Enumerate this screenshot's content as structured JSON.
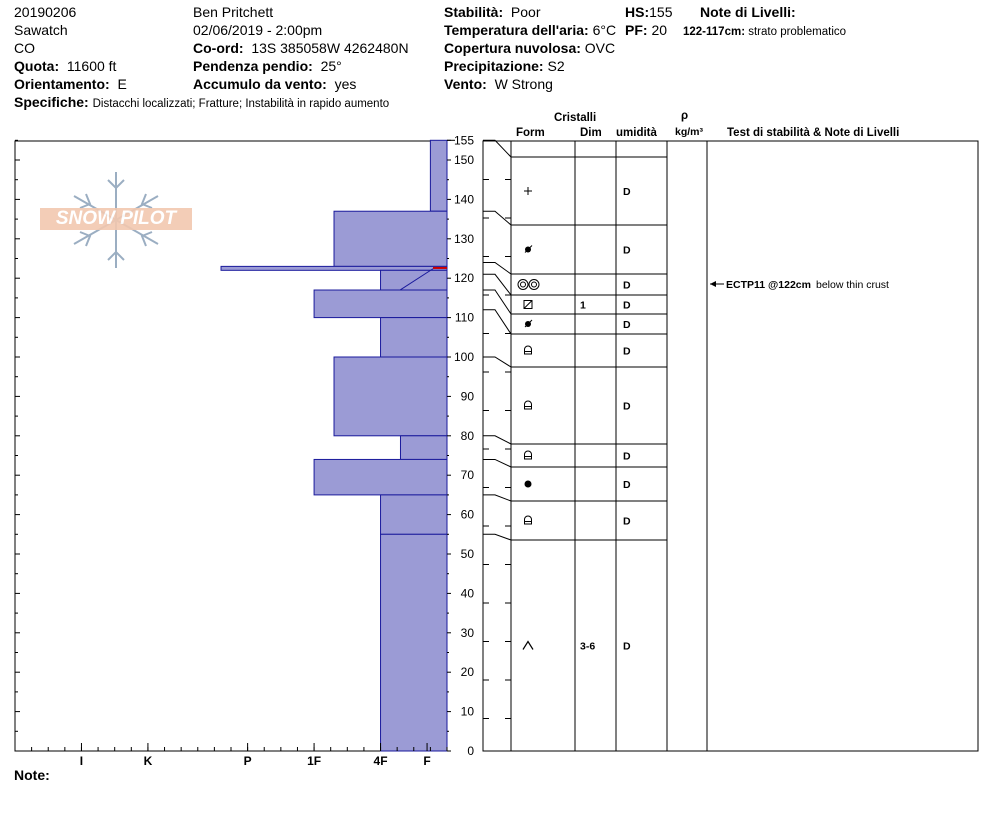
{
  "header": {
    "date": "20190206",
    "range": "Sawatch",
    "state": "CO",
    "elevation_label": "Quota:",
    "elevation_value": "11600 ft",
    "aspect_label": "Orientamento:",
    "aspect_value": "E",
    "details_label": "Specifiche:",
    "details_value": "Distacchi localizzati;  Fratture;  Instabilità in rapido aumento",
    "observer": "Ben Pritchett",
    "datetime": "02/06/2019 - 2:00pm",
    "coord_label": "Co-ord:",
    "coord_value": "13S 385058W 4262480N",
    "slope_label": "Pendenza pendio:",
    "slope_value": "25°",
    "wind_loading_label": "Accumulo da vento:",
    "wind_loading_value": "yes",
    "stability_label": "Stabilità:",
    "stability_value": "Poor",
    "air_temp_label": "Temperatura dell'aria:",
    "air_temp_value": "6°C",
    "sky_label": "Copertura nuvolosa:",
    "sky_value": "OVC",
    "precip_label": "Precipitazione:",
    "precip_value": "S2",
    "wind_label": "Vento:",
    "wind_value": "W Strong",
    "hs_label": "HS:",
    "hs_value": "155",
    "pf_label": "PF:",
    "pf_value": "20",
    "layer_notes_label": "Note di Livelli:",
    "layer_note_range": "122-117cm:",
    "layer_note_text": "strato problematico"
  },
  "logo_text": "SNOW PILOT",
  "columns": {
    "crystals": "Cristalli",
    "form": "Form",
    "dim": "Dim",
    "moisture": "umidità",
    "rho": "ρ",
    "density_unit": "kg/m³",
    "stability_notes": "Test di stabilità & Note di Livelli"
  },
  "stability_test": {
    "label": "ECTP11 @122cm",
    "note": "below thin crust",
    "depth": 122
  },
  "footer_note_label": "Note:",
  "colors": {
    "hardness_fill": "#9b9bd5",
    "hardness_edge": "#1a1a9c",
    "crust_line": "#cc0000"
  },
  "chart_data": {
    "type": "bar",
    "title": "",
    "xlabel": "",
    "ylabel": "",
    "ylim": [
      0,
      155
    ],
    "yticks": [
      0,
      10,
      20,
      30,
      40,
      50,
      60,
      70,
      80,
      90,
      100,
      110,
      120,
      130,
      140,
      150,
      155
    ],
    "hardness_ticks": [
      {
        "label": "I",
        "value": 5.5
      },
      {
        "label": "K",
        "value": 4.5
      },
      {
        "label": "P",
        "value": 3
      },
      {
        "label": "1F",
        "value": 2
      },
      {
        "label": "4F",
        "value": 1
      },
      {
        "label": "F",
        "value": 0.3
      }
    ],
    "hardness_scale_max": 6.5,
    "hardness_profile": [
      {
        "bottom": 137,
        "top": 155,
        "hardness": 0.25
      },
      {
        "bottom": 123,
        "top": 137,
        "hardness": 1.7
      },
      {
        "bottom": 122,
        "top": 123,
        "hardness": 3.4
      },
      {
        "bottom": 117,
        "top": 122,
        "hardness": 1.0
      },
      {
        "bottom": 110,
        "top": 117,
        "hardness": 2.0
      },
      {
        "bottom": 100,
        "top": 110,
        "hardness": 1.0
      },
      {
        "bottom": 80,
        "top": 100,
        "hardness": 1.7
      },
      {
        "bottom": 74,
        "top": 80,
        "hardness": 0.7
      },
      {
        "bottom": 65,
        "top": 74,
        "hardness": 2.0
      },
      {
        "bottom": 55,
        "top": 65,
        "hardness": 1.0
      },
      {
        "bottom": 0,
        "top": 55,
        "hardness": 1.0
      }
    ],
    "layers": [
      {
        "top": 155,
        "bottom": 137,
        "form": "+",
        "dim": "",
        "moisture": "D"
      },
      {
        "top": 137,
        "bottom": 124,
        "form": "precipitation-particle-icon",
        "dim": "",
        "moisture": "D"
      },
      {
        "top": 124,
        "bottom": 121,
        "form": "melt-freeze-icon",
        "dim": "",
        "moisture": "D"
      },
      {
        "top": 121,
        "bottom": 117,
        "form": "faceted-icon",
        "dim": "1",
        "moisture": "D"
      },
      {
        "top": 117,
        "bottom": 112,
        "form": "precipitation-particle-icon",
        "dim": "",
        "moisture": "D"
      },
      {
        "top": 112,
        "bottom": 100,
        "form": "rounding-facet-icon",
        "dim": "",
        "moisture": "D"
      },
      {
        "top": 100,
        "bottom": 80,
        "form": "rounding-facet-icon",
        "dim": "",
        "moisture": "D"
      },
      {
        "top": 80,
        "bottom": 74,
        "form": "rounding-facet-icon",
        "dim": "",
        "moisture": "D"
      },
      {
        "top": 74,
        "bottom": 65,
        "form": "rounded-grain-icon",
        "dim": "",
        "moisture": "D"
      },
      {
        "top": 65,
        "bottom": 55,
        "form": "rounding-facet-icon",
        "dim": "",
        "moisture": "D"
      },
      {
        "top": 55,
        "bottom": 0,
        "form": "depth-hoar-icon",
        "dim": "3-6",
        "moisture": "D"
      }
    ]
  }
}
